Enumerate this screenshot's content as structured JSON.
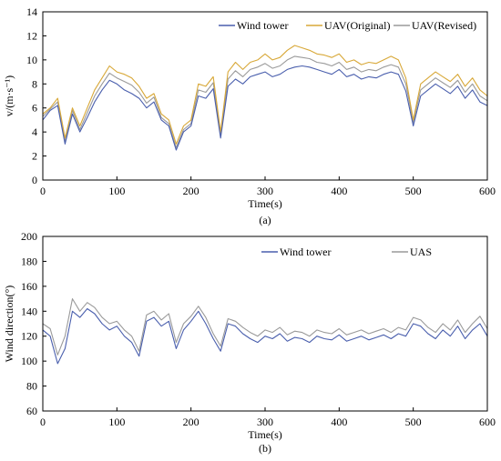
{
  "chart_data": [
    {
      "type": "line",
      "panel_label": "(a)",
      "xlabel": "Time(s)",
      "ylabel": "v/(m·s⁻¹)",
      "xlim": [
        0,
        600
      ],
      "ylim": [
        0,
        14
      ],
      "xticks": [
        0,
        100,
        200,
        300,
        400,
        500,
        600
      ],
      "yticks": [
        0,
        2,
        4,
        6,
        8,
        10,
        12,
        14
      ],
      "grid": false,
      "legend_position": "top-right",
      "x": [
        0,
        10,
        20,
        30,
        40,
        50,
        60,
        70,
        80,
        90,
        100,
        110,
        120,
        130,
        140,
        150,
        160,
        170,
        180,
        190,
        200,
        210,
        220,
        230,
        240,
        250,
        260,
        270,
        280,
        290,
        300,
        310,
        320,
        330,
        340,
        350,
        360,
        370,
        380,
        390,
        400,
        410,
        420,
        430,
        440,
        450,
        460,
        470,
        480,
        490,
        500,
        510,
        520,
        530,
        540,
        550,
        560,
        570,
        580,
        590,
        600
      ],
      "series": [
        {
          "name": "Wind tower",
          "color": "#4a5fad",
          "values": [
            5.0,
            5.8,
            6.2,
            3.0,
            5.5,
            4.0,
            5.2,
            6.5,
            7.5,
            8.3,
            8.0,
            7.5,
            7.2,
            6.8,
            6.0,
            6.5,
            5.0,
            4.5,
            2.5,
            4.0,
            4.5,
            7.0,
            6.8,
            7.6,
            3.5,
            7.8,
            8.4,
            8.0,
            8.6,
            8.8,
            9.0,
            8.6,
            8.8,
            9.2,
            9.4,
            9.5,
            9.4,
            9.2,
            9.0,
            8.8,
            9.2,
            8.6,
            8.8,
            8.4,
            8.6,
            8.5,
            8.8,
            9.0,
            8.8,
            7.4,
            4.5,
            7.0,
            7.5,
            8.0,
            7.6,
            7.2,
            7.8,
            6.8,
            7.5,
            6.5,
            6.2
          ]
        },
        {
          "name": "UAV(Original)",
          "color": "#d8a838",
          "values": [
            5.5,
            6.0,
            6.8,
            3.5,
            6.0,
            4.5,
            6.0,
            7.5,
            8.5,
            9.5,
            9.0,
            8.8,
            8.5,
            7.8,
            6.8,
            7.2,
            5.5,
            5.0,
            3.0,
            4.5,
            5.0,
            8.0,
            7.8,
            8.6,
            4.0,
            9.0,
            9.8,
            9.2,
            9.8,
            10.0,
            10.5,
            10.0,
            10.2,
            10.8,
            11.2,
            11.0,
            10.8,
            10.5,
            10.4,
            10.2,
            10.5,
            9.8,
            10.0,
            9.6,
            9.8,
            9.7,
            10.0,
            10.3,
            10.0,
            8.5,
            5.0,
            8.0,
            8.5,
            9.0,
            8.6,
            8.2,
            8.8,
            7.8,
            8.5,
            7.5,
            7.0
          ]
        },
        {
          "name": "UAV(Revised)",
          "color": "#9a9a9a",
          "values": [
            5.3,
            5.9,
            6.5,
            3.2,
            5.8,
            4.2,
            5.6,
            7.0,
            8.0,
            8.9,
            8.5,
            8.2,
            7.9,
            7.3,
            6.4,
            6.9,
            5.2,
            4.7,
            2.7,
            4.2,
            4.7,
            7.5,
            7.3,
            8.1,
            3.7,
            8.4,
            9.1,
            8.6,
            9.2,
            9.4,
            9.7,
            9.3,
            9.5,
            10.0,
            10.3,
            10.2,
            10.1,
            9.8,
            9.7,
            9.5,
            9.8,
            9.2,
            9.4,
            9.0,
            9.2,
            9.1,
            9.4,
            9.6,
            9.4,
            8.0,
            4.8,
            7.5,
            8.0,
            8.5,
            8.1,
            7.7,
            8.3,
            7.3,
            8.0,
            7.0,
            6.6
          ]
        }
      ]
    },
    {
      "type": "line",
      "panel_label": "(b)",
      "xlabel": "Time(s)",
      "ylabel": "Wind direction(°)",
      "xlim": [
        0,
        600
      ],
      "ylim": [
        60,
        200
      ],
      "xticks": [
        0,
        100,
        200,
        300,
        400,
        500,
        600
      ],
      "yticks": [
        60,
        80,
        100,
        120,
        140,
        160,
        180,
        200
      ],
      "grid": false,
      "legend_position": "top-right",
      "x": [
        0,
        10,
        20,
        30,
        40,
        50,
        60,
        70,
        80,
        90,
        100,
        110,
        120,
        130,
        140,
        150,
        160,
        170,
        180,
        190,
        200,
        210,
        220,
        230,
        240,
        250,
        260,
        270,
        280,
        290,
        300,
        310,
        320,
        330,
        340,
        350,
        360,
        370,
        380,
        390,
        400,
        410,
        420,
        430,
        440,
        450,
        460,
        470,
        480,
        490,
        500,
        510,
        520,
        530,
        540,
        550,
        560,
        570,
        580,
        590,
        600
      ],
      "series": [
        {
          "name": "Wind tower",
          "color": "#4a5fad",
          "values": [
            125,
            120,
            98,
            110,
            140,
            135,
            142,
            138,
            130,
            125,
            128,
            120,
            115,
            104,
            132,
            135,
            128,
            132,
            110,
            125,
            132,
            140,
            130,
            118,
            108,
            130,
            128,
            122,
            118,
            115,
            120,
            118,
            122,
            116,
            119,
            118,
            115,
            120,
            118,
            117,
            121,
            116,
            118,
            120,
            117,
            119,
            121,
            118,
            122,
            120,
            130,
            128,
            122,
            118,
            125,
            120,
            128,
            118,
            125,
            130,
            120
          ]
        },
        {
          "name": "UAS",
          "color": "#9a9a9a",
          "values": [
            130,
            126,
            105,
            120,
            150,
            140,
            147,
            143,
            135,
            130,
            132,
            125,
            120,
            108,
            137,
            140,
            133,
            138,
            115,
            130,
            136,
            144,
            135,
            122,
            112,
            134,
            132,
            127,
            123,
            120,
            125,
            123,
            127,
            121,
            124,
            123,
            120,
            125,
            123,
            122,
            126,
            121,
            123,
            125,
            122,
            124,
            126,
            123,
            127,
            125,
            135,
            133,
            127,
            123,
            130,
            125,
            133,
            123,
            130,
            136,
            126
          ]
        }
      ]
    }
  ]
}
